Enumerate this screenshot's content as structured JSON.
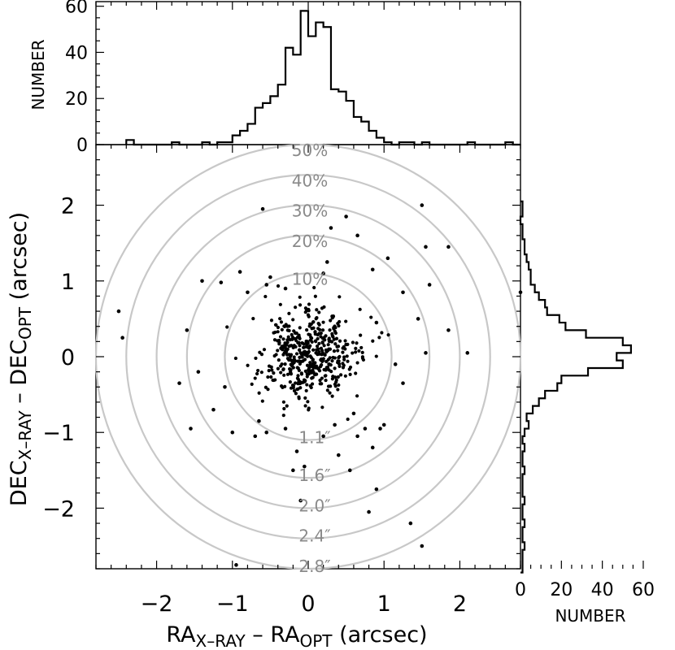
{
  "chart_data": [
    {
      "id": "top-histogram",
      "type": "histogram",
      "ylabel": "NUMBER",
      "xlim": [
        -2.8,
        2.8
      ],
      "ylim": [
        0,
        62
      ],
      "yticks": [
        "0",
        "20",
        "40",
        "60"
      ],
      "bin_width": 0.1,
      "bins": [
        {
          "x": -2.35,
          "y": 2
        },
        {
          "x": -2.25,
          "y": 0
        },
        {
          "x": -2.15,
          "y": 0
        },
        {
          "x": -2.05,
          "y": 0
        },
        {
          "x": -1.95,
          "y": 0
        },
        {
          "x": -1.85,
          "y": 0
        },
        {
          "x": -1.75,
          "y": 1
        },
        {
          "x": -1.65,
          "y": 0
        },
        {
          "x": -1.55,
          "y": 0
        },
        {
          "x": -1.45,
          "y": 0
        },
        {
          "x": -1.35,
          "y": 1
        },
        {
          "x": -1.25,
          "y": 0
        },
        {
          "x": -1.15,
          "y": 1
        },
        {
          "x": -1.05,
          "y": 1
        },
        {
          "x": -0.95,
          "y": 4
        },
        {
          "x": -0.85,
          "y": 6
        },
        {
          "x": -0.75,
          "y": 9
        },
        {
          "x": -0.65,
          "y": 16
        },
        {
          "x": -0.55,
          "y": 18
        },
        {
          "x": -0.45,
          "y": 21
        },
        {
          "x": -0.35,
          "y": 26
        },
        {
          "x": -0.25,
          "y": 42
        },
        {
          "x": -0.15,
          "y": 39
        },
        {
          "x": -0.05,
          "y": 58
        },
        {
          "x": 0.05,
          "y": 47
        },
        {
          "x": 0.15,
          "y": 53
        },
        {
          "x": 0.25,
          "y": 51
        },
        {
          "x": 0.35,
          "y": 24
        },
        {
          "x": 0.45,
          "y": 23
        },
        {
          "x": 0.55,
          "y": 19
        },
        {
          "x": 0.65,
          "y": 12
        },
        {
          "x": 0.75,
          "y": 10
        },
        {
          "x": 0.85,
          "y": 6
        },
        {
          "x": 0.95,
          "y": 3
        },
        {
          "x": 1.05,
          "y": 1
        },
        {
          "x": 1.15,
          "y": 0
        },
        {
          "x": 1.25,
          "y": 1
        },
        {
          "x": 1.35,
          "y": 1
        },
        {
          "x": 1.45,
          "y": 0
        },
        {
          "x": 1.55,
          "y": 1
        },
        {
          "x": 1.65,
          "y": 0
        },
        {
          "x": 1.75,
          "y": 0
        },
        {
          "x": 1.85,
          "y": 0
        },
        {
          "x": 1.95,
          "y": 0
        },
        {
          "x": 2.05,
          "y": 0
        },
        {
          "x": 2.15,
          "y": 1
        },
        {
          "x": 2.25,
          "y": 0
        },
        {
          "x": 2.35,
          "y": 0
        },
        {
          "x": 2.45,
          "y": 0
        },
        {
          "x": 2.55,
          "y": 0
        },
        {
          "x": 2.65,
          "y": 1
        },
        {
          "x": 2.75,
          "y": 0
        }
      ]
    },
    {
      "id": "scatter",
      "type": "scatter",
      "xlabel": {
        "main": "RA",
        "sub1": "X–RAY",
        "mid": " – RA",
        "sub2": "OPT",
        "tail": " (arcsec)"
      },
      "ylabel": {
        "main": "DEC",
        "sub1": "X–RAY",
        "mid": " – DEC",
        "sub2": "OPT",
        "tail": " (arcsec)"
      },
      "xlim": [
        -2.8,
        2.8
      ],
      "ylim": [
        -2.8,
        2.8
      ],
      "xticks": [
        {
          "v": -2,
          "label": "−2"
        },
        {
          "v": -1,
          "label": "−1"
        },
        {
          "v": 0,
          "label": "0"
        },
        {
          "v": 1,
          "label": "1"
        },
        {
          "v": 2,
          "label": "2"
        }
      ],
      "yticks": [
        {
          "v": 2,
          "label": "2"
        },
        {
          "v": 1,
          "label": "1"
        },
        {
          "v": 0,
          "label": "0"
        },
        {
          "v": -1,
          "label": "−1"
        },
        {
          "v": -2,
          "label": "−2"
        }
      ],
      "rings": [
        {
          "r": 1.1,
          "top_label": "10%",
          "bottom_label": "1.1″"
        },
        {
          "r": 1.6,
          "top_label": "20%",
          "bottom_label": "1.6″"
        },
        {
          "r": 2.0,
          "top_label": "30%",
          "bottom_label": "2.0″"
        },
        {
          "r": 2.4,
          "top_label": "40%",
          "bottom_label": "2.4″"
        },
        {
          "r": 2.8,
          "top_label": "50%",
          "bottom_label": "2.8″"
        }
      ],
      "outer_points": [
        [
          -0.6,
          1.95
        ],
        [
          -1.4,
          1.0
        ],
        [
          -1.15,
          0.98
        ],
        [
          -0.9,
          1.12
        ],
        [
          -0.55,
          0.95
        ],
        [
          -0.3,
          0.9
        ],
        [
          -0.5,
          1.05
        ],
        [
          0.25,
          1.25
        ],
        [
          0.5,
          1.85
        ],
        [
          0.65,
          1.6
        ],
        [
          0.3,
          1.7
        ],
        [
          0.85,
          1.15
        ],
        [
          1.25,
          0.85
        ],
        [
          1.55,
          1.45
        ],
        [
          1.55,
          0.05
        ],
        [
          1.85,
          1.45
        ],
        [
          2.1,
          0.05
        ],
        [
          1.85,
          0.35
        ],
        [
          1.45,
          0.5
        ],
        [
          0.9,
          0.45
        ],
        [
          1.5,
          2.0
        ],
        [
          -2.5,
          0.6
        ],
        [
          -2.45,
          0.25
        ],
        [
          -1.45,
          -0.2
        ],
        [
          -1.7,
          -0.35
        ],
        [
          -1.55,
          -0.95
        ],
        [
          -1.1,
          -0.4
        ],
        [
          -0.65,
          -0.85
        ],
        [
          -0.7,
          -1.05
        ],
        [
          -0.55,
          -1.0
        ],
        [
          -0.3,
          -0.95
        ],
        [
          -0.15,
          -1.25
        ],
        [
          0.2,
          -1.05
        ],
        [
          0.35,
          -0.9
        ],
        [
          0.75,
          -0.95
        ],
        [
          0.85,
          -1.2
        ],
        [
          0.95,
          -0.95
        ],
        [
          1.0,
          -0.9
        ],
        [
          0.55,
          -1.5
        ],
        [
          0.9,
          -1.75
        ],
        [
          -0.2,
          -1.5
        ],
        [
          -0.1,
          -1.9
        ],
        [
          0.8,
          -2.05
        ],
        [
          1.35,
          -2.2
        ],
        [
          1.5,
          -2.5
        ],
        [
          -1.0,
          -1.0
        ],
        [
          -0.95,
          -2.75
        ],
        [
          2.8,
          0.85
        ],
        [
          1.15,
          -0.1
        ],
        [
          1.25,
          -0.35
        ],
        [
          -0.05,
          -1.45
        ],
        [
          0.65,
          -1.05
        ],
        [
          -1.25,
          -0.7
        ],
        [
          0.6,
          -0.75
        ],
        [
          -0.8,
          0.85
        ],
        [
          0.2,
          1.1
        ],
        [
          1.05,
          1.3
        ],
        [
          1.6,
          0.95
        ],
        [
          -1.6,
          0.35
        ],
        [
          0.4,
          -1.3
        ]
      ],
      "core_seed": 20240531,
      "core_n": 470,
      "core_sigma": 0.33
    },
    {
      "id": "right-histogram",
      "type": "histogram",
      "xlabel": "NUMBER",
      "xlim": [
        0,
        62
      ],
      "xticks": [
        "0",
        "20",
        "40",
        "60"
      ],
      "ylim": [
        -2.8,
        2.8
      ],
      "bin_width": 0.1,
      "bins": [
        {
          "y": 2.0,
          "n": 1
        },
        {
          "y": 1.9,
          "n": 1
        },
        {
          "y": 1.8,
          "n": 0
        },
        {
          "y": 1.7,
          "n": 1
        },
        {
          "y": 1.6,
          "n": 1
        },
        {
          "y": 1.5,
          "n": 2
        },
        {
          "y": 1.4,
          "n": 2
        },
        {
          "y": 1.3,
          "n": 3
        },
        {
          "y": 1.2,
          "n": 4
        },
        {
          "y": 1.1,
          "n": 5
        },
        {
          "y": 1.0,
          "n": 5
        },
        {
          "y": 0.9,
          "n": 7
        },
        {
          "y": 0.8,
          "n": 9
        },
        {
          "y": 0.7,
          "n": 12
        },
        {
          "y": 0.6,
          "n": 13
        },
        {
          "y": 0.5,
          "n": 19
        },
        {
          "y": 0.4,
          "n": 22
        },
        {
          "y": 0.3,
          "n": 32
        },
        {
          "y": 0.2,
          "n": 50
        },
        {
          "y": 0.1,
          "n": 54
        },
        {
          "y": 0.0,
          "n": 47
        },
        {
          "y": -0.1,
          "n": 50
        },
        {
          "y": -0.2,
          "n": 33
        },
        {
          "y": -0.3,
          "n": 20
        },
        {
          "y": -0.4,
          "n": 18
        },
        {
          "y": -0.5,
          "n": 12
        },
        {
          "y": -0.6,
          "n": 9
        },
        {
          "y": -0.7,
          "n": 6
        },
        {
          "y": -0.8,
          "n": 3
        },
        {
          "y": -0.9,
          "n": 4
        },
        {
          "y": -1.0,
          "n": 2
        },
        {
          "y": -1.1,
          "n": 1
        },
        {
          "y": -1.2,
          "n": 2
        },
        {
          "y": -1.3,
          "n": 1
        },
        {
          "y": -1.4,
          "n": 1
        },
        {
          "y": -1.5,
          "n": 2
        },
        {
          "y": -1.6,
          "n": 1
        },
        {
          "y": -1.7,
          "n": 1
        },
        {
          "y": -1.8,
          "n": 1
        },
        {
          "y": -1.9,
          "n": 2
        },
        {
          "y": -2.0,
          "n": 1
        },
        {
          "y": -2.1,
          "n": 1
        },
        {
          "y": -2.2,
          "n": 2
        },
        {
          "y": -2.3,
          "n": 1
        },
        {
          "y": -2.4,
          "n": 1
        },
        {
          "y": -2.5,
          "n": 2
        },
        {
          "y": -2.6,
          "n": 1
        },
        {
          "y": -2.7,
          "n": 1
        },
        {
          "y": -2.8,
          "n": 1
        }
      ]
    }
  ]
}
